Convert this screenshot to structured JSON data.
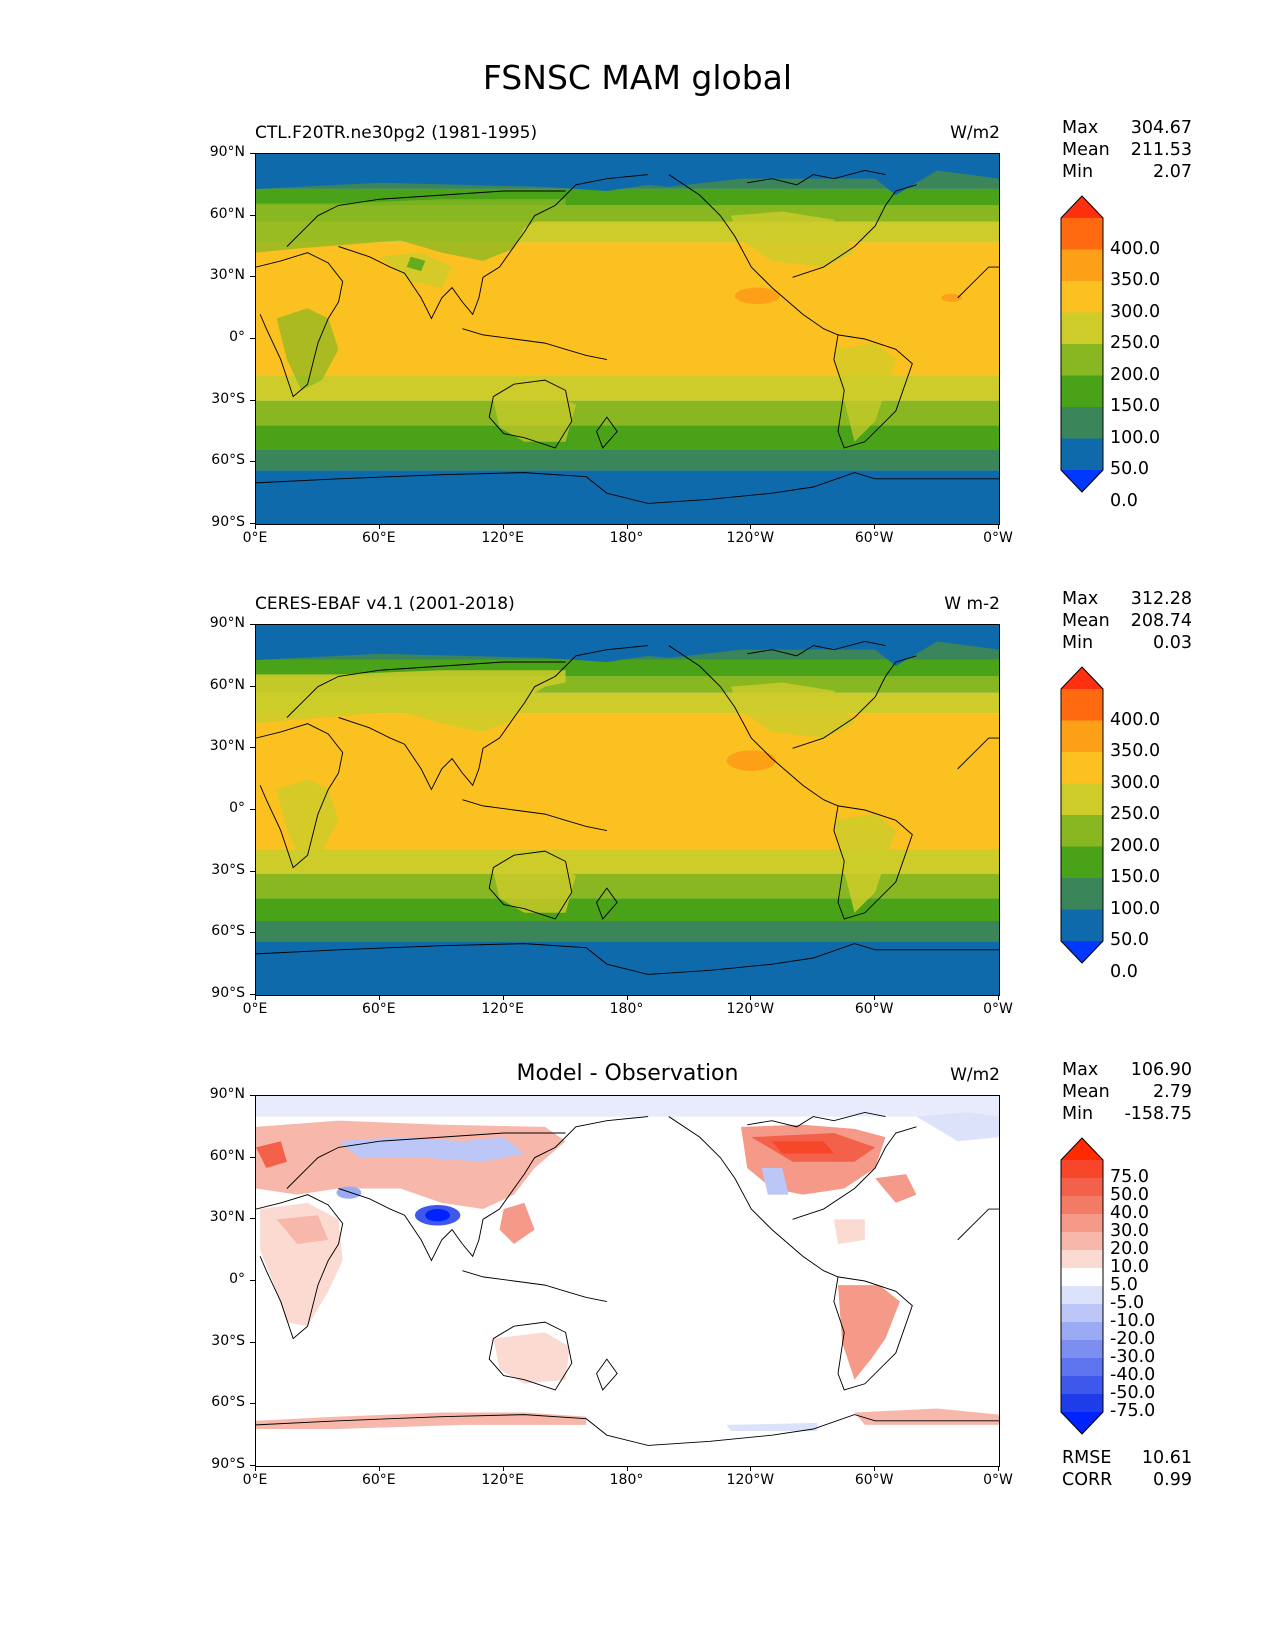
{
  "figure": {
    "title": "FSNSC MAM global"
  },
  "axes": {
    "lat_ticks": [
      "90°N",
      "60°N",
      "30°N",
      "0°",
      "30°S",
      "60°S",
      "90°S"
    ],
    "lon_ticks": [
      "0°E",
      "60°E",
      "120°E",
      "180°",
      "120°W",
      "60°W",
      "0°W"
    ]
  },
  "panels": [
    {
      "title": "CTL.F20TR.ne30pg2 (1981-1995)",
      "units": "W/m2",
      "stats": [
        {
          "label": "Max",
          "value": "304.67"
        },
        {
          "label": "Mean",
          "value": "211.53"
        },
        {
          "label": "Min",
          "value": "2.07"
        }
      ],
      "colorbar": {
        "labels": [
          "400.0",
          "350.0",
          "300.0",
          "250.0",
          "200.0",
          "150.0",
          "100.0",
          "50.0",
          "0.0"
        ],
        "colors": [
          "#ff3010",
          "#ff6a10",
          "#fca018",
          "#fbc121",
          "#cdcc2a",
          "#88b721",
          "#4aa218",
          "#3a855a",
          "#0e6aaa",
          "#0038ff"
        ]
      }
    },
    {
      "title": "CERES-EBAF v4.1 (2001-2018)",
      "units": "W m-2",
      "stats": [
        {
          "label": "Max",
          "value": "312.28"
        },
        {
          "label": "Mean",
          "value": "208.74"
        },
        {
          "label": "Min",
          "value": "0.03"
        }
      ],
      "colorbar": {
        "labels": [
          "400.0",
          "350.0",
          "300.0",
          "250.0",
          "200.0",
          "150.0",
          "100.0",
          "50.0",
          "0.0"
        ],
        "colors": [
          "#ff3010",
          "#ff6a10",
          "#fca018",
          "#fbc121",
          "#cdcc2a",
          "#88b721",
          "#4aa218",
          "#3a855a",
          "#0e6aaa",
          "#0038ff"
        ]
      }
    },
    {
      "title": "Model - Observation",
      "units": "W/m2",
      "stats": [
        {
          "label": "Max",
          "value": "106.90"
        },
        {
          "label": "Mean",
          "value": "2.79"
        },
        {
          "label": "Min",
          "value": "-158.75"
        }
      ],
      "extra_stats": [
        {
          "label": "RMSE",
          "value": "10.61"
        },
        {
          "label": "CORR",
          "value": "0.99"
        }
      ],
      "colorbar": {
        "labels": [
          "75.0",
          "50.0",
          "40.0",
          "30.0",
          "20.0",
          "10.0",
          "5.0",
          "-5.0",
          "-10.0",
          "-20.0",
          "-30.0",
          "-40.0",
          "-50.0",
          "-75.0"
        ],
        "colors": [
          "#ff2a00",
          "#f7462a",
          "#f3614a",
          "#f37b66",
          "#f59a88",
          "#f7b8ab",
          "#fbdad2",
          "#ffffff",
          "#dde2fb",
          "#bcc7f7",
          "#9aaaf3",
          "#7c8ff1",
          "#5d74ee",
          "#3e58ec",
          "#1f3ce9",
          "#0022ff"
        ]
      }
    }
  ]
}
